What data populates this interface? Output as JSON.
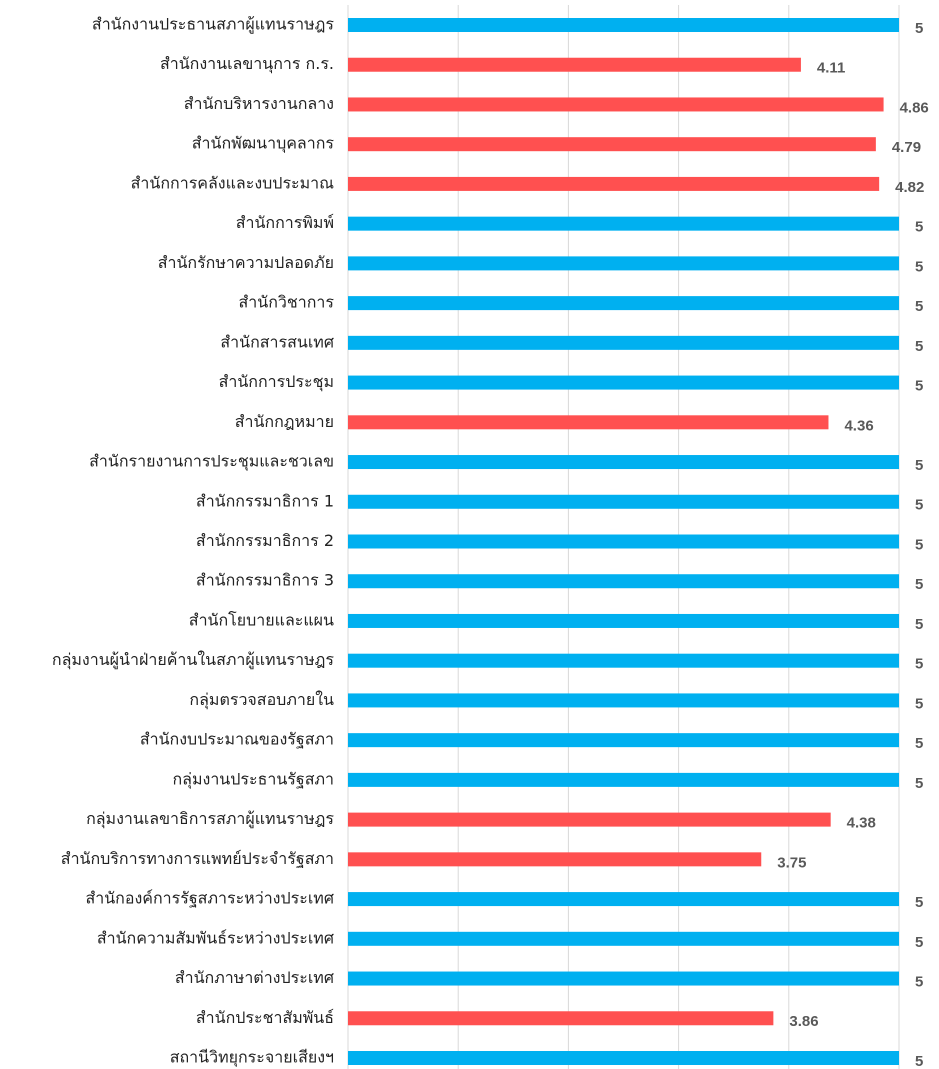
{
  "chart_data": {
    "type": "barh",
    "categories": [
      "สำนักงานประธานสภาผู้แทนราษฎร",
      "สำนักงานเลขานุการ ก.ร.",
      "สำนักบริหารงานกลาง",
      "สำนักพัฒนาบุคลากร",
      "สำนักการคลังและงบประมาณ",
      "สำนักการพิมพ์",
      "สำนักรักษาความปลอดภัย",
      "สำนักวิชาการ",
      "สำนักสารสนเทศ",
      "สำนักการประชุม",
      "สำนักกฎหมาย",
      "สำนักรายงานการประชุมและชวเลข",
      "สำนักกรรมาธิการ 1",
      "สำนักกรรมาธิการ 2",
      "สำนักกรรมาธิการ 3",
      "สำนักโยบายและแผน",
      "กลุ่มงานผู้นำฝ่ายค้านในสภาผู้แทนราษฎร",
      "กลุ่มตรวจสอบภายใน",
      "สำนักงบประมาณของรัฐสภา",
      "กลุ่มงานประธานรัฐสภา",
      "กลุ่มงานเลขาธิการสภาผู้แทนราษฎร",
      "สำนักบริการทางการแพทย์ประจำรัฐสภา",
      "สำนักองค์การรัฐสภาระหว่างประเทศ",
      "สำนักความสัมพันธ์ระหว่างประเทศ",
      "สำนักภาษาต่างประเทศ",
      "สำนักประชาสัมพันธ์",
      "สถานีวิทยุกระจายเสียงฯ"
    ],
    "values": [
      5,
      4.11,
      4.86,
      4.79,
      4.82,
      5,
      5,
      5,
      5,
      5,
      4.36,
      5,
      5,
      5,
      5,
      5,
      5,
      5,
      5,
      5,
      4.38,
      3.75,
      5,
      5,
      5,
      3.86,
      5
    ],
    "colors": [
      "#00b0f0",
      "#ff5050",
      "#ff5050",
      "#ff5050",
      "#ff5050",
      "#00b0f0",
      "#00b0f0",
      "#00b0f0",
      "#00b0f0",
      "#00b0f0",
      "#ff5050",
      "#00b0f0",
      "#00b0f0",
      "#00b0f0",
      "#00b0f0",
      "#00b0f0",
      "#00b0f0",
      "#00b0f0",
      "#00b0f0",
      "#00b0f0",
      "#ff5050",
      "#ff5050",
      "#00b0f0",
      "#00b0f0",
      "#00b0f0",
      "#ff5050",
      "#00b0f0"
    ],
    "xlim": [
      0,
      5
    ],
    "xticks": [
      0,
      1,
      2,
      3,
      4,
      5
    ],
    "grid": true
  }
}
